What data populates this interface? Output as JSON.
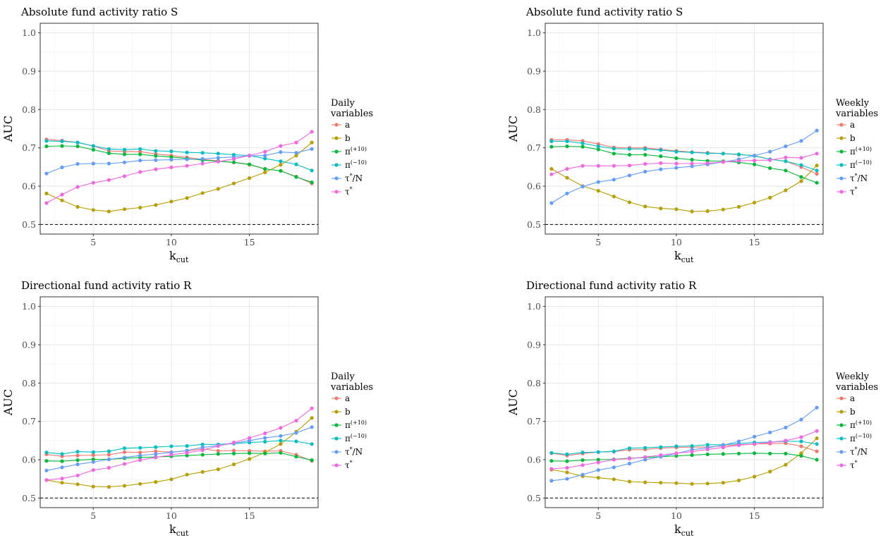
{
  "colors": {
    "a": "#F8766D",
    "b": "#B79F00",
    "pi_plus": "#00BA38",
    "pi_minus": "#00BFC4",
    "tau_N": "#619CFF",
    "tau": "#F564E3"
  },
  "chart_data": [
    {
      "type": "line",
      "title": "Absolute fund activity ratio S",
      "xlabel": "k",
      "xlabel_sub": "cut",
      "ylabel": "AUC",
      "xlim": [
        1.6,
        19.4
      ],
      "ylim": [
        0.475,
        1.025
      ],
      "x_ticks": [
        "5",
        "10",
        "15"
      ],
      "y_ticks": [
        "0.5",
        "0.6",
        "0.7",
        "0.8",
        "0.9",
        "1.0"
      ],
      "reference_line": 0.5,
      "grid": true,
      "legend": {
        "title_line1": "Daily",
        "title_line2": "variables",
        "placement": "right"
      },
      "x": [
        2,
        3,
        4,
        5,
        6,
        7,
        8,
        9,
        10,
        11,
        12,
        13,
        14,
        15,
        16,
        17,
        18,
        19
      ],
      "series": [
        {
          "name": "a",
          "color_key": "a",
          "values": [
            0.722,
            0.719,
            0.714,
            0.705,
            0.692,
            0.69,
            0.69,
            0.684,
            0.68,
            0.675,
            0.67,
            0.666,
            0.662,
            0.656,
            0.645,
            0.64,
            0.625,
            0.607
          ]
        },
        {
          "name": "b",
          "color_key": "b",
          "values": [
            0.581,
            0.563,
            0.546,
            0.538,
            0.534,
            0.54,
            0.544,
            0.551,
            0.56,
            0.569,
            0.582,
            0.593,
            0.607,
            0.621,
            0.636,
            0.656,
            0.68,
            0.714
          ]
        },
        {
          "name": "π",
          "name_sup": "(+10)",
          "color_key": "pi_plus",
          "values": [
            0.704,
            0.705,
            0.704,
            0.695,
            0.686,
            0.683,
            0.683,
            0.679,
            0.676,
            0.672,
            0.668,
            0.665,
            0.662,
            0.657,
            0.645,
            0.64,
            0.624,
            0.61
          ]
        },
        {
          "name": "π",
          "name_sup": "(−10)",
          "color_key": "pi_minus",
          "values": [
            0.718,
            0.717,
            0.714,
            0.705,
            0.697,
            0.695,
            0.697,
            0.692,
            0.691,
            0.688,
            0.687,
            0.685,
            0.682,
            0.68,
            0.672,
            0.665,
            0.657,
            0.641
          ]
        },
        {
          "name": "τ",
          "name_sup": "*",
          "name_suffix": "/N",
          "color_key": "tau_N",
          "values": [
            0.633,
            0.649,
            0.658,
            0.659,
            0.659,
            0.662,
            0.667,
            0.668,
            0.669,
            0.67,
            0.671,
            0.674,
            0.676,
            0.679,
            0.68,
            0.689,
            0.687,
            0.697
          ]
        },
        {
          "name": "τ",
          "name_sup": "*",
          "color_key": "tau",
          "values": [
            0.556,
            0.578,
            0.598,
            0.609,
            0.616,
            0.626,
            0.637,
            0.644,
            0.649,
            0.653,
            0.659,
            0.664,
            0.671,
            0.68,
            0.69,
            0.705,
            0.714,
            0.742
          ]
        }
      ]
    },
    {
      "type": "line",
      "title": "Absolute fund activity ratio S",
      "xlabel": "k",
      "xlabel_sub": "cut",
      "ylabel": "AUC",
      "xlim": [
        1.6,
        19.4
      ],
      "ylim": [
        0.475,
        1.025
      ],
      "x_ticks": [
        "5",
        "10",
        "15"
      ],
      "y_ticks": [
        "0.5",
        "0.6",
        "0.7",
        "0.8",
        "0.9",
        "1.0"
      ],
      "reference_line": 0.5,
      "grid": true,
      "legend": {
        "title_line1": "Weekly",
        "title_line2": "variables",
        "placement": "right"
      },
      "x": [
        2,
        3,
        4,
        5,
        6,
        7,
        8,
        9,
        10,
        11,
        12,
        13,
        14,
        15,
        16,
        17,
        18,
        19
      ],
      "series": [
        {
          "name": "a",
          "color_key": "a",
          "values": [
            0.721,
            0.721,
            0.718,
            0.71,
            0.701,
            0.7,
            0.7,
            0.696,
            0.692,
            0.689,
            0.687,
            0.685,
            0.682,
            0.68,
            0.67,
            0.665,
            0.65,
            0.632
          ]
        },
        {
          "name": "b",
          "color_key": "b",
          "values": [
            0.645,
            0.622,
            0.6,
            0.588,
            0.573,
            0.558,
            0.547,
            0.542,
            0.54,
            0.534,
            0.535,
            0.539,
            0.546,
            0.557,
            0.57,
            0.589,
            0.613,
            0.654
          ]
        },
        {
          "name": "π",
          "name_sup": "(+10)",
          "color_key": "pi_plus",
          "values": [
            0.703,
            0.704,
            0.703,
            0.696,
            0.685,
            0.682,
            0.682,
            0.678,
            0.673,
            0.669,
            0.666,
            0.665,
            0.662,
            0.657,
            0.647,
            0.641,
            0.624,
            0.609
          ]
        },
        {
          "name": "π",
          "name_sup": "(−10)",
          "color_key": "pi_minus",
          "values": [
            0.717,
            0.717,
            0.712,
            0.704,
            0.698,
            0.697,
            0.697,
            0.694,
            0.69,
            0.688,
            0.686,
            0.685,
            0.683,
            0.679,
            0.67,
            0.665,
            0.655,
            0.641
          ]
        },
        {
          "name": "τ",
          "name_sup": "*",
          "name_suffix": "/N",
          "color_key": "tau_N",
          "values": [
            0.556,
            0.581,
            0.599,
            0.611,
            0.617,
            0.628,
            0.638,
            0.644,
            0.648,
            0.652,
            0.657,
            0.663,
            0.67,
            0.68,
            0.69,
            0.704,
            0.718,
            0.745
          ]
        },
        {
          "name": "τ",
          "name_sup": "*",
          "color_key": "tau",
          "values": [
            0.631,
            0.645,
            0.653,
            0.653,
            0.653,
            0.654,
            0.658,
            0.66,
            0.659,
            0.659,
            0.66,
            0.663,
            0.666,
            0.667,
            0.668,
            0.675,
            0.674,
            0.685
          ]
        }
      ]
    },
    {
      "type": "line",
      "title": "Directional fund activity ratio R",
      "xlabel": "k",
      "xlabel_sub": "cut",
      "ylabel": "AUC",
      "xlim": [
        1.6,
        19.4
      ],
      "ylim": [
        0.475,
        1.025
      ],
      "x_ticks": [
        "5",
        "10",
        "15"
      ],
      "y_ticks": [
        "0.5",
        "0.6",
        "0.7",
        "0.8",
        "0.9",
        "1.0"
      ],
      "reference_line": 0.5,
      "grid": true,
      "legend": {
        "title_line1": "Daily",
        "title_line2": "variables",
        "placement": "right"
      },
      "x": [
        2,
        3,
        4,
        5,
        6,
        7,
        8,
        9,
        10,
        11,
        12,
        13,
        14,
        15,
        16,
        17,
        18,
        19
      ],
      "series": [
        {
          "name": "a",
          "color_key": "a",
          "values": [
            0.614,
            0.609,
            0.611,
            0.612,
            0.613,
            0.62,
            0.619,
            0.622,
            0.62,
            0.623,
            0.628,
            0.623,
            0.624,
            0.623,
            0.622,
            0.623,
            0.613,
            0.597
          ]
        },
        {
          "name": "b",
          "color_key": "b",
          "values": [
            0.547,
            0.54,
            0.536,
            0.53,
            0.529,
            0.532,
            0.537,
            0.542,
            0.549,
            0.561,
            0.568,
            0.575,
            0.588,
            0.602,
            0.619,
            0.641,
            0.673,
            0.709
          ]
        },
        {
          "name": "π",
          "name_sup": "(+10)",
          "color_key": "pi_plus",
          "values": [
            0.597,
            0.596,
            0.599,
            0.601,
            0.601,
            0.604,
            0.606,
            0.607,
            0.609,
            0.611,
            0.613,
            0.615,
            0.616,
            0.617,
            0.616,
            0.618,
            0.608,
            0.599
          ]
        },
        {
          "name": "π",
          "name_sup": "(−10)",
          "color_key": "pi_minus",
          "values": [
            0.619,
            0.615,
            0.621,
            0.62,
            0.622,
            0.63,
            0.631,
            0.633,
            0.635,
            0.636,
            0.64,
            0.64,
            0.642,
            0.645,
            0.647,
            0.65,
            0.648,
            0.641
          ]
        },
        {
          "name": "τ",
          "name_sup": "*",
          "name_suffix": "/N",
          "color_key": "tau_N",
          "values": [
            0.572,
            0.58,
            0.588,
            0.594,
            0.601,
            0.606,
            0.611,
            0.615,
            0.619,
            0.624,
            0.632,
            0.637,
            0.643,
            0.65,
            0.657,
            0.662,
            0.67,
            0.685
          ]
        },
        {
          "name": "τ",
          "name_sup": "*",
          "color_key": "tau",
          "values": [
            0.547,
            0.551,
            0.559,
            0.573,
            0.579,
            0.589,
            0.599,
            0.606,
            0.613,
            0.618,
            0.625,
            0.636,
            0.645,
            0.657,
            0.669,
            0.683,
            0.702,
            0.734
          ]
        }
      ]
    },
    {
      "type": "line",
      "title": "Directional fund activity ratio R",
      "xlabel": "k",
      "xlabel_sub": "cut",
      "ylabel": "AUC",
      "xlim": [
        1.6,
        19.4
      ],
      "ylim": [
        0.475,
        1.025
      ],
      "x_ticks": [
        "5",
        "10",
        "15"
      ],
      "y_ticks": [
        "0.5",
        "0.6",
        "0.7",
        "0.8",
        "0.9",
        "1.0"
      ],
      "reference_line": 0.5,
      "grid": true,
      "legend": {
        "title_line1": "Weekly",
        "title_line2": "variables",
        "placement": "right"
      },
      "x": [
        2,
        3,
        4,
        5,
        6,
        7,
        8,
        9,
        10,
        11,
        12,
        13,
        14,
        15,
        16,
        17,
        18,
        19
      ],
      "series": [
        {
          "name": "a",
          "color_key": "a",
          "values": [
            0.617,
            0.611,
            0.616,
            0.62,
            0.621,
            0.626,
            0.627,
            0.63,
            0.632,
            0.633,
            0.633,
            0.636,
            0.639,
            0.641,
            0.642,
            0.643,
            0.635,
            0.622
          ]
        },
        {
          "name": "b",
          "color_key": "b",
          "values": [
            0.574,
            0.567,
            0.557,
            0.553,
            0.549,
            0.543,
            0.541,
            0.54,
            0.539,
            0.537,
            0.538,
            0.54,
            0.546,
            0.556,
            0.569,
            0.587,
            0.617,
            0.656
          ]
        },
        {
          "name": "π",
          "name_sup": "(+10)",
          "color_key": "pi_plus",
          "values": [
            0.597,
            0.596,
            0.599,
            0.6,
            0.601,
            0.604,
            0.606,
            0.608,
            0.61,
            0.612,
            0.614,
            0.615,
            0.616,
            0.617,
            0.616,
            0.616,
            0.61,
            0.6
          ]
        },
        {
          "name": "π",
          "name_sup": "(−10)",
          "color_key": "pi_minus",
          "values": [
            0.618,
            0.614,
            0.619,
            0.62,
            0.622,
            0.63,
            0.631,
            0.633,
            0.635,
            0.636,
            0.639,
            0.639,
            0.642,
            0.645,
            0.646,
            0.648,
            0.648,
            0.641
          ]
        },
        {
          "name": "τ",
          "name_sup": "*",
          "name_suffix": "/N",
          "color_key": "tau_N",
          "values": [
            0.545,
            0.55,
            0.561,
            0.573,
            0.58,
            0.59,
            0.6,
            0.608,
            0.616,
            0.626,
            0.631,
            0.638,
            0.648,
            0.66,
            0.671,
            0.684,
            0.705,
            0.736
          ]
        },
        {
          "name": "τ",
          "name_sup": "*",
          "color_key": "tau",
          "values": [
            0.576,
            0.579,
            0.586,
            0.593,
            0.6,
            0.603,
            0.607,
            0.612,
            0.617,
            0.621,
            0.627,
            0.632,
            0.638,
            0.641,
            0.645,
            0.65,
            0.659,
            0.675
          ]
        }
      ]
    }
  ]
}
